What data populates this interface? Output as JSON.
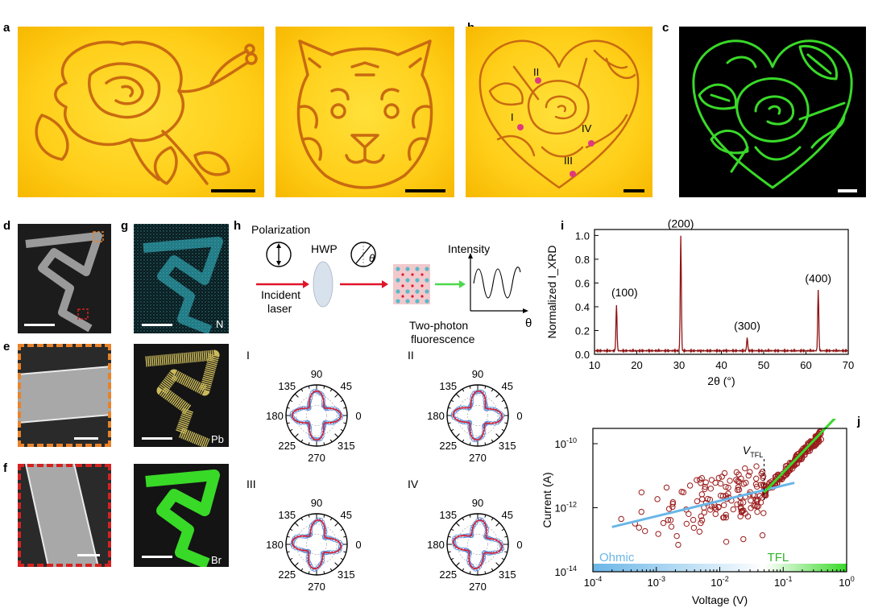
{
  "panel_labels": {
    "a": "a",
    "b": "b",
    "c": "c",
    "d": "d",
    "e": "e",
    "f": "f",
    "g": "g",
    "h": "h",
    "i": "i",
    "j": "j"
  },
  "panel_b_points": [
    "I",
    "II",
    "III",
    "IV"
  ],
  "eds_labels": [
    "N",
    "Pb",
    "Br"
  ],
  "h": {
    "polarization": "Polarization",
    "hwp": "HWP",
    "incident_laser": "Incident\nlaser",
    "theta_symbol": "θ",
    "intensity": "Intensity",
    "theta_axis": "θ",
    "two_photon": "Two-photon\nfluorescence"
  },
  "polar_plots": [
    {
      "label": "I",
      "ticks": [
        "90",
        "45",
        "0",
        "315",
        "270",
        "225",
        "180",
        "135"
      ]
    },
    {
      "label": "II",
      "ticks": [
        "90",
        "45",
        "0",
        "315",
        "270",
        "225",
        "180",
        "135"
      ]
    },
    {
      "label": "III",
      "ticks": [
        "90",
        "45",
        "0",
        "315",
        "270",
        "225",
        "180",
        "135"
      ]
    },
    {
      "label": "IV",
      "ticks": [
        "90",
        "45",
        "0",
        "315",
        "270",
        "225",
        "180",
        "135"
      ]
    }
  ],
  "colors": {
    "yellow": "#ffd21f",
    "trace_red": "#a01414",
    "green": "#39d928",
    "fit_blue": "#6ab6e8",
    "eds_cyan": "#39c7d6",
    "eds_gold": "#d3c15a"
  },
  "chart_data": [
    {
      "type": "line",
      "panel": "i",
      "xlabel": "2θ (°)",
      "ylabel": "Normalized I_XRD",
      "xlim": [
        10,
        70
      ],
      "ylim": [
        0,
        1.05
      ],
      "xticks": [
        "10",
        "20",
        "30",
        "40",
        "50",
        "60",
        "70"
      ],
      "yticks": [
        "0.0",
        "0.2",
        "0.4",
        "0.6",
        "0.8",
        "1.0"
      ],
      "peaks": [
        {
          "label": "(100)",
          "x": 15.2,
          "y": 0.42
        },
        {
          "label": "(200)",
          "x": 30.4,
          "y": 1.0
        },
        {
          "label": "(300)",
          "x": 46.1,
          "y": 0.14
        },
        {
          "label": "(400)",
          "x": 62.9,
          "y": 0.54
        }
      ],
      "baseline": 0.03
    },
    {
      "type": "scatter",
      "panel": "j",
      "xlabel": "Voltage (V)",
      "ylabel": "Current (A)",
      "xscale": "log",
      "yscale": "log",
      "xlim": [
        0.0001,
        1
      ],
      "ylim": [
        1e-14,
        3e-10
      ],
      "xticks": [
        "10-4",
        "10-3",
        "10-2",
        "10-1",
        "100"
      ],
      "yticks": [
        "10-14",
        "10-12",
        "10-10"
      ],
      "annotation": "VTFL",
      "v_tfl": 0.05,
      "regions": [
        {
          "name": "Ohmic",
          "from": 0.0001,
          "to": 0.05,
          "color": "#6ab6e8"
        },
        {
          "name": "TFL",
          "from": 0.05,
          "to": 1,
          "color": "#39d928"
        }
      ],
      "fits": [
        {
          "name": "Ohmic fit",
          "from": [
            0.0002,
            2.5e-13
          ],
          "to": [
            0.15,
            6e-12
          ],
          "color": "#6ab6e8"
        },
        {
          "name": "TFL fit",
          "from": [
            0.05,
            3e-12
          ],
          "to": [
            1,
            1.5e-09
          ],
          "color": "#39d928"
        }
      ]
    }
  ]
}
